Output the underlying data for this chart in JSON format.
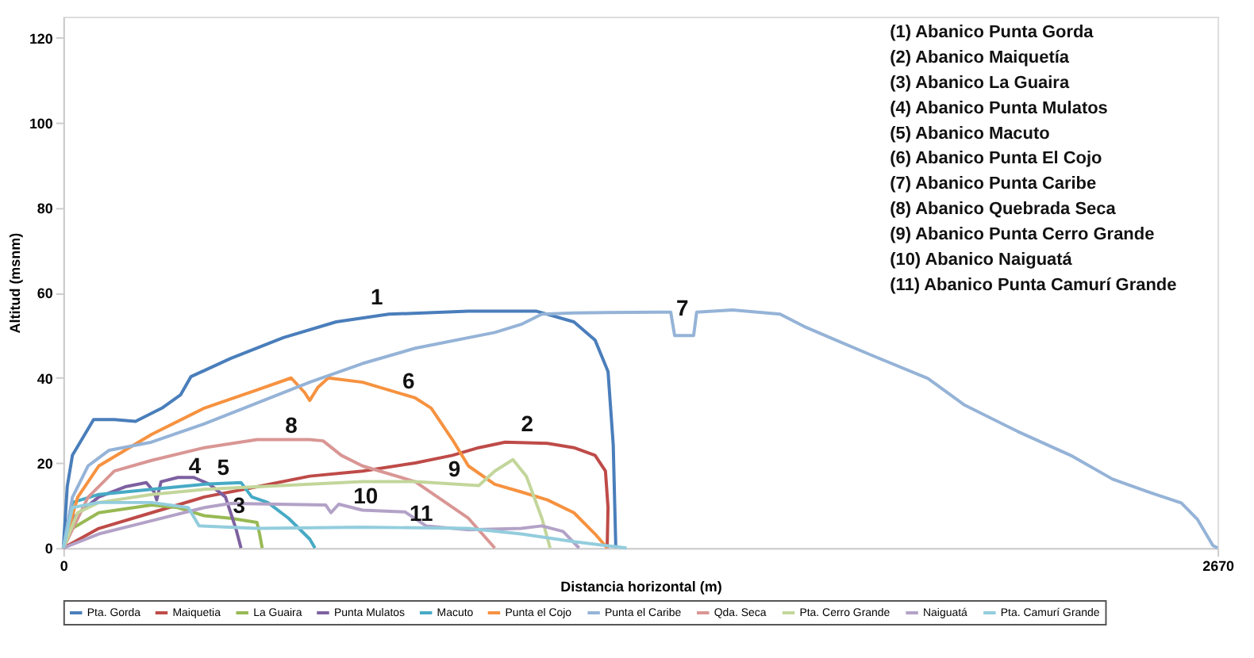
{
  "chart_data": {
    "type": "line",
    "xlabel": "Distancia horizontal (m)",
    "ylabel": "Altitud (msnm)",
    "xlim": [
      0,
      2670
    ],
    "xticks": [
      0,
      {
        "value": 2670,
        "label": "2670"
      }
    ],
    "ylim": [
      0,
      125
    ],
    "yticks": [
      0,
      20,
      40,
      60,
      80,
      100,
      120
    ],
    "grid": false,
    "legend": "bottom",
    "series": [
      {
        "name": "Pta. Gorda",
        "color": "#4a7ebb",
        "x": [
          0,
          9,
          21,
          39,
          70,
          118,
          167,
          228,
          271,
          295,
          387,
          509,
          631,
          753,
          937,
          1095,
          1181,
          1230,
          1260,
          1272,
          1278
        ],
        "values": [
          0,
          14.4,
          21.8,
          24.9,
          30.2,
          30.2,
          29.8,
          32.9,
          36,
          40.3,
          44.6,
          49.5,
          53.2,
          55,
          55.7,
          55.7,
          53.2,
          48.9,
          41.5,
          24.3,
          0
        ]
      },
      {
        "name": "Maiquetia",
        "color": "#be4b48",
        "x": [
          0,
          82,
          204,
          326,
          448,
          570,
          692,
          814,
          900,
          961,
          1022,
          1120,
          1181,
          1230,
          1254,
          1260,
          1258
        ],
        "values": [
          0,
          4.6,
          8.3,
          12,
          14.4,
          16.9,
          18.1,
          20,
          21.8,
          23.6,
          24.9,
          24.6,
          23.6,
          21.8,
          18.1,
          9.5,
          0
        ]
      },
      {
        "name": "La Guaira",
        "color": "#98b954",
        "x": [
          0,
          21,
          82,
          204,
          265,
          326,
          387,
          448,
          454,
          460
        ],
        "values": [
          0,
          4.6,
          8.3,
          10.1,
          9.5,
          7.6,
          7,
          6,
          3.3,
          0
        ]
      },
      {
        "name": "Punta Mulatos",
        "color": "#7d60a0",
        "x": [
          0,
          21,
          82,
          143,
          192,
          210,
          216,
          226,
          265,
          302,
          338,
          375,
          399,
          411
        ],
        "values": [
          0,
          7,
          12,
          14.4,
          15.4,
          13.2,
          11.3,
          15.6,
          16.6,
          16.6,
          15,
          12,
          4.6,
          0
        ]
      },
      {
        "name": "Macuto",
        "color": "#46aac5",
        "x": [
          0,
          21,
          82,
          204,
          326,
          411,
          436,
          473,
          521,
          570,
          582
        ],
        "values": [
          0,
          10.7,
          12.6,
          13.8,
          15,
          15.4,
          12,
          10.7,
          7,
          2.1,
          0
        ]
      },
      {
        "name": "Punta el Cojo",
        "color": "#f69240",
        "x": [
          0,
          33,
          82,
          204,
          326,
          448,
          527,
          558,
          570,
          589,
          613,
          692,
          814,
          851,
          900,
          937,
          998,
          1059,
          1120,
          1181,
          1230,
          1258
        ],
        "values": [
          0,
          11.9,
          19.3,
          26.7,
          32.9,
          37.2,
          40,
          36.6,
          34.7,
          37.8,
          40,
          39,
          35.3,
          32.9,
          25.5,
          19.3,
          15,
          13.2,
          11.3,
          8.3,
          3.3,
          0
        ]
      },
      {
        "name": "Punta el Caribe",
        "color": "#95b3d7",
        "x": [
          0,
          21,
          57,
          106,
          204,
          326,
          448,
          570,
          692,
          814,
          998,
          1059,
          1107,
          1181,
          1376,
          1405,
          1414,
          1458,
          1465,
          1548,
          1658,
          1718,
          1780,
          1866,
          2000,
          2085,
          2208,
          2330,
          2427,
          2513,
          2586,
          2623,
          2659,
          2670
        ],
        "values": [
          0,
          11.9,
          19.3,
          23,
          24.9,
          29.2,
          34.1,
          39,
          43.4,
          47,
          50.7,
          52.6,
          55,
          55.3,
          55.5,
          55.5,
          50,
          50,
          55.5,
          56,
          55,
          51.9,
          49.2,
          45.5,
          39.9,
          33.6,
          27.4,
          21.8,
          16.2,
          13.1,
          10.6,
          6.8,
          0.6,
          0
        ]
      },
      {
        "name": "Qda. Seca",
        "color": "#d99694",
        "x": [
          0,
          57,
          118,
          204,
          326,
          448,
          570,
          601,
          643,
          692,
          814,
          937,
          998
        ],
        "values": [
          0,
          11.9,
          18.1,
          20.6,
          23.6,
          25.5,
          25.5,
          25.2,
          21.8,
          19.3,
          15.6,
          7,
          0
        ]
      },
      {
        "name": "Pta. Cerro Grande",
        "color": "#c3d69b",
        "x": [
          0,
          33,
          82,
          204,
          326,
          448,
          570,
          692,
          814,
          961,
          998,
          1040,
          1071,
          1107,
          1126
        ],
        "values": [
          0,
          8.3,
          10.7,
          12.6,
          13.8,
          14.4,
          15,
          15.6,
          15.6,
          14.7,
          18.1,
          20.8,
          16.9,
          7,
          0
        ]
      },
      {
        "name": "Naiguatá",
        "color": "#b3a2c7",
        "x": [
          0,
          82,
          204,
          326,
          387,
          607,
          619,
          637,
          692,
          790,
          839,
          937,
          1059,
          1107,
          1156,
          1193
        ],
        "values": [
          0,
          3.3,
          6.4,
          9.5,
          10.5,
          10.1,
          8.3,
          10.3,
          8.9,
          8.5,
          5.2,
          4.3,
          4.6,
          5.2,
          3.9,
          0
        ]
      },
      {
        "name": "Pta. Camurí Grande",
        "color": "#93cddd",
        "x": [
          0,
          21,
          82,
          204,
          289,
          314,
          448,
          692,
          937,
          1059,
          1181,
          1303
        ],
        "values": [
          0,
          9.5,
          10.7,
          10.7,
          9.5,
          5.2,
          4.6,
          4.9,
          4.6,
          3.3,
          1.5,
          0
        ]
      }
    ],
    "annotations": [
      "1",
      "2",
      "3",
      "4",
      "5",
      "6",
      "7",
      "8",
      "9",
      "10",
      "11",
      "(1) Abanico Punta Gorda",
      "(2) Abanico Maiquetía",
      "(3) Abanico La Guaira",
      "(4) Abanico Punta Mulatos",
      "(5) Abanico Macuto",
      "(6) Abanico Punta El Cojo",
      "(7) Abanico Punta Caribe",
      "(8) Abanico Quebrada Seca",
      "(9) Abanico Punta Cerro Grande",
      "(10) Abanico Naiguatá",
      "(11) Abanico Punta Camurí Grande"
    ]
  }
}
